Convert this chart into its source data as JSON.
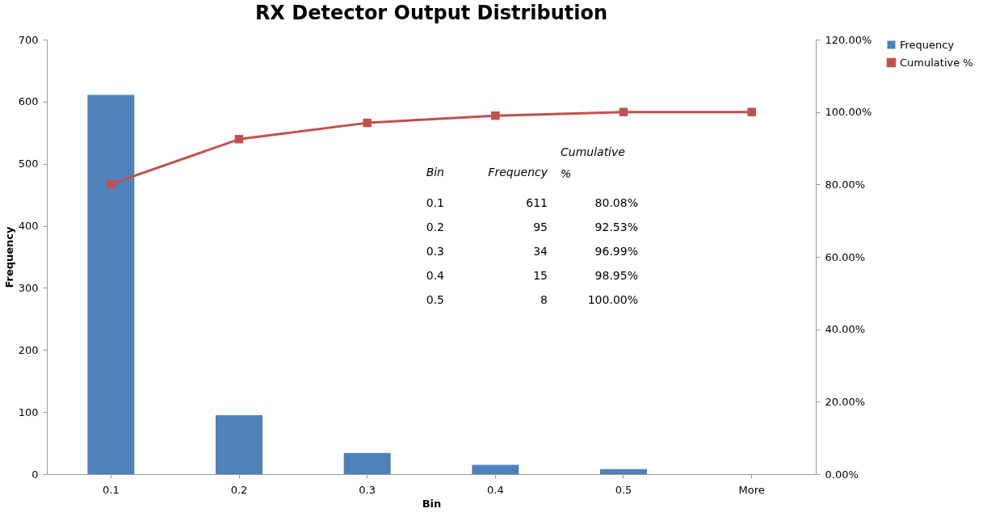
{
  "chart_data": {
    "type": "bar",
    "title": "RX Detector Output Distribution",
    "xlabel": "Bin",
    "ylabel": "Frequency",
    "categories": [
      "0.1",
      "0.2",
      "0.3",
      "0.4",
      "0.5",
      "More"
    ],
    "series": [
      {
        "name": "Frequency",
        "color": "#4f81bd",
        "values": [
          611,
          95,
          34,
          15,
          8,
          0
        ]
      },
      {
        "name": "Cumulative %",
        "type": "line",
        "axis": "y2",
        "marker": "square",
        "color": "#c0504d",
        "values": [
          80.1,
          92.5,
          97.0,
          99.0,
          100,
          100
        ]
      }
    ],
    "annotations": [
      "Bin",
      "Frequency",
      "Cumulative %",
      "0.1",
      "611",
      "80.08%",
      "0.2",
      "95",
      "92.53%",
      "0.3",
      "34",
      "96.99%",
      "0.4",
      "15",
      "98.95%",
      "0.5",
      "8",
      "100.00%"
    ],
    "ylim": [
      0,
      700
    ],
    "yticks": [
      0,
      100,
      200,
      300,
      400,
      500,
      600,
      700
    ],
    "y2lim": [
      0,
      120
    ],
    "y2ticks": [
      {
        "value": 0,
        "label": "0.00%"
      },
      {
        "value": 20,
        "label": "20.00%"
      },
      {
        "value": 40,
        "label": "40.00%"
      },
      {
        "value": 60,
        "label": "60.00%"
      },
      {
        "value": 80,
        "label": "80.00%"
      },
      {
        "value": 100,
        "label": "100.00%"
      },
      {
        "value": 120,
        "label": "120.00%"
      }
    ],
    "grid": false,
    "legend": "right"
  }
}
